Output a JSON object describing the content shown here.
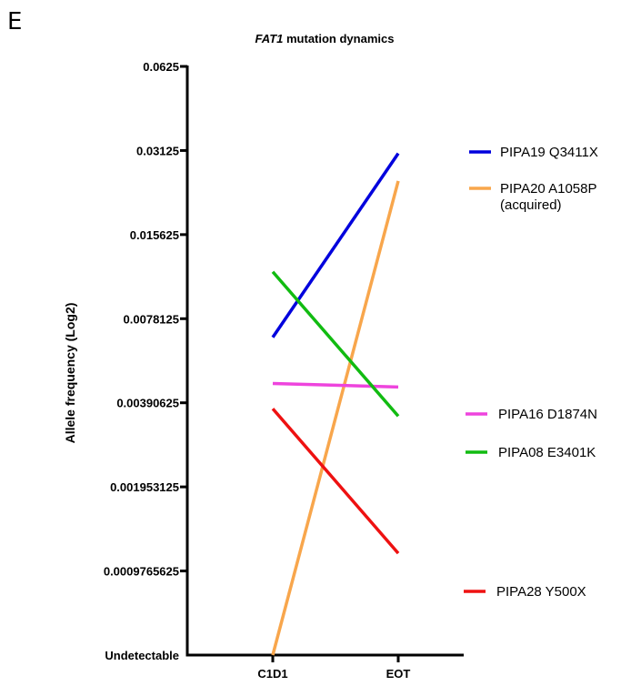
{
  "panel_letter": "E",
  "chart_data": {
    "type": "line",
    "title_gene": "FAT1",
    "title_rest": " mutation dynamics",
    "ylabel": "Allele frequency (Log2)",
    "xlabel": "",
    "y_scale": "log2",
    "categories": [
      "C1D1",
      "EOT"
    ],
    "y_ticks": [
      {
        "label": "Undetectable",
        "value": 0.00048828125
      },
      {
        "label": "0.0009765625",
        "value": 0.0009765625
      },
      {
        "label": "0.001953125",
        "value": 0.001953125
      },
      {
        "label": "0.00390625",
        "value": 0.00390625
      },
      {
        "label": "0.0078125",
        "value": 0.0078125
      },
      {
        "label": "0.015625",
        "value": 0.015625
      },
      {
        "label": "0.03125",
        "value": 0.03125
      },
      {
        "label": "0.0625",
        "value": 0.0625
      }
    ],
    "ylim": [
      0.00048828125,
      0.0625
    ],
    "grid": false,
    "legend_position": "right",
    "series": [
      {
        "legend": "PIPA19 Q3411X",
        "color": "#0000dd",
        "values": [
          0.0067,
          0.0305
        ]
      },
      {
        "legend": "PIPA20 A1058P",
        "legend_line2": "(acquired)",
        "color": "#f8a64c",
        "values": [
          0.00048828125,
          0.0243
        ]
      },
      {
        "legend": "PIPA16 D1874N",
        "color": "#ee44dd",
        "values": [
          0.00458,
          0.00445
        ]
      },
      {
        "legend": "PIPA08 E3401K",
        "color": "#11bb11",
        "values": [
          0.0115,
          0.0035
        ]
      },
      {
        "legend": "PIPA28 Y500X",
        "color": "#ee1111",
        "values": [
          0.00372,
          0.00113
        ]
      }
    ]
  }
}
